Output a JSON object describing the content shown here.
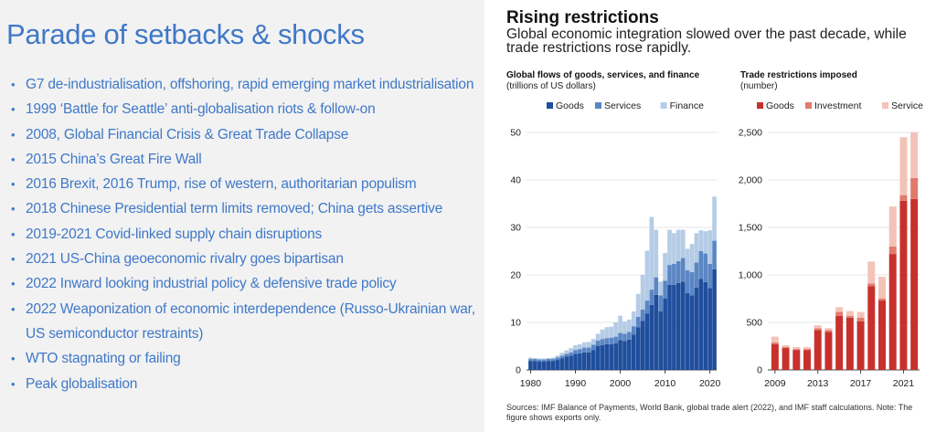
{
  "slide": {
    "title": "Parade of setbacks & shocks",
    "bullets": [
      "G7 de-industrialisation, offshoring, rapid emerging market industrialisation",
      "1999 ‘Battle for Seattle’ anti-globalisation riots & follow-on",
      "2008, Global Financial Crisis & Great Trade Collapse",
      "2015 China’s Great Fire Wall",
      "2016 Brexit, 2016 Trump, rise of western, authoritarian populism",
      "2018 Chinese Presidential term limits removed; China gets assertive",
      "2019-2021 Covid-linked supply chain disruptions",
      "2021 US-China geoeconomic rivalry goes bipartisan",
      "2022 Inward looking industrial policy & defensive trade policy",
      "2022 Weaponization of economic interdependence (Russo-Ukrainian war, US semiconductor restraints)",
      "WTO stagnating or failing",
      "Peak globalisation"
    ]
  },
  "figure": {
    "title": "Rising restrictions",
    "subtitle": "Global economic integration slowed over the past decade, while trade restrictions rose rapidly.",
    "source": "Sources: IMF Balance of Payments, World Bank, global trade alert (2022), and IMF staff calculations. Note: The figure shows exports only."
  },
  "colors": {
    "slide_text": "#3f78c8",
    "goods_blue": "#1f4e9c",
    "services_blue": "#5b86c4",
    "finance_blue": "#b5cce6",
    "goods_red": "#c8302c",
    "investment_red": "#e07b6d",
    "service_red": "#f3c3b8"
  },
  "chart_data": [
    {
      "type": "bar",
      "stacked": true,
      "title": "Global flows of goods, services, and finance",
      "ylabel": "(trillions of US dollars)",
      "ylim": [
        0,
        50
      ],
      "yticks": [
        0,
        10,
        20,
        30,
        40,
        50
      ],
      "xticks": [
        1980,
        1990,
        2000,
        2010,
        2020
      ],
      "legend": "top",
      "x": [
        1980,
        1981,
        1982,
        1983,
        1984,
        1985,
        1986,
        1987,
        1988,
        1989,
        1990,
        1991,
        1992,
        1993,
        1994,
        1995,
        1996,
        1997,
        1998,
        1999,
        2000,
        2001,
        2002,
        2003,
        2004,
        2005,
        2006,
        2007,
        2008,
        2009,
        2010,
        2011,
        2012,
        2013,
        2014,
        2015,
        2016,
        2017,
        2018,
        2019,
        2020,
        2021
      ],
      "series": [
        {
          "name": "Goods",
          "color": "#1f4e9c",
          "values": [
            1.9,
            1.9,
            1.8,
            1.8,
            1.9,
            1.9,
            2.1,
            2.4,
            2.8,
            3.0,
            3.4,
            3.5,
            3.7,
            3.7,
            4.2,
            5.0,
            5.2,
            5.4,
            5.4,
            5.6,
            6.3,
            6.1,
            6.4,
            7.4,
            9.0,
            10.3,
            11.9,
            13.7,
            15.8,
            12.3,
            15.0,
            17.9,
            17.9,
            18.3,
            18.6,
            16.2,
            15.7,
            17.3,
            19.2,
            18.5,
            17.2,
            21.2
          ]
        },
        {
          "name": "Services",
          "color": "#5b86c4",
          "values": [
            0.4,
            0.4,
            0.4,
            0.4,
            0.4,
            0.4,
            0.5,
            0.6,
            0.6,
            0.7,
            0.8,
            0.9,
            1.0,
            1.0,
            1.1,
            1.2,
            1.3,
            1.3,
            1.4,
            1.4,
            1.5,
            1.5,
            1.6,
            1.8,
            2.2,
            2.4,
            2.7,
            3.2,
            3.7,
            3.4,
            3.8,
            4.2,
            4.4,
            4.6,
            5.0,
            4.8,
            4.9,
            5.3,
            5.8,
            6.0,
            5.1,
            6.0
          ]
        },
        {
          "name": "Finance",
          "color": "#b5cce6",
          "values": [
            0.3,
            0.2,
            0.2,
            0.2,
            0.2,
            0.3,
            0.4,
            0.6,
            0.7,
            0.9,
            1.0,
            1.0,
            1.1,
            1.2,
            1.2,
            1.4,
            2.0,
            2.3,
            2.3,
            3.0,
            3.6,
            2.6,
            2.6,
            3.1,
            4.8,
            7.3,
            10.5,
            15.3,
            10.0,
            2.9,
            5.8,
            7.4,
            6.5,
            6.6,
            5.9,
            4.5,
            5.9,
            6.2,
            4.4,
            4.7,
            7.1,
            9.3
          ]
        }
      ]
    },
    {
      "type": "bar",
      "stacked": true,
      "title": "Trade restrictions imposed",
      "ylabel": "(number)",
      "ylim": [
        0,
        2500
      ],
      "yticks": [
        0,
        500,
        1000,
        1500,
        2000,
        2500
      ],
      "xticks": [
        2009,
        2013,
        2017,
        2021
      ],
      "legend": "top",
      "x": [
        2009,
        2010,
        2011,
        2012,
        2013,
        2014,
        2015,
        2016,
        2017,
        2018,
        2019,
        2020,
        2021,
        2022
      ],
      "series": [
        {
          "name": "Goods",
          "color": "#c8302c",
          "values": [
            270,
            230,
            210,
            210,
            420,
            400,
            570,
            550,
            510,
            880,
            730,
            1220,
            1780,
            1800
          ]
        },
        {
          "name": "Investment",
          "color": "#e07b6d",
          "values": [
            20,
            10,
            10,
            10,
            20,
            20,
            40,
            20,
            40,
            30,
            20,
            80,
            60,
            220
          ]
        },
        {
          "name": "Service",
          "color": "#f3c3b8",
          "values": [
            60,
            20,
            20,
            20,
            30,
            20,
            50,
            50,
            60,
            230,
            230,
            420,
            610,
            480
          ]
        }
      ]
    }
  ]
}
